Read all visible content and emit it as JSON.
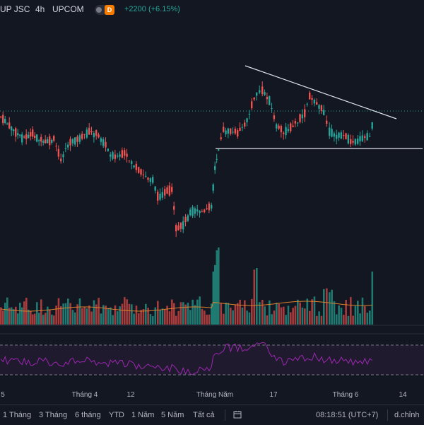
{
  "header": {
    "symbol": "UP JSC",
    "interval": "4h",
    "exchange": "UPCOM",
    "delayed_badge": "D",
    "change": "+2200 (+6.15%)",
    "change_color": "#26a69a"
  },
  "colors": {
    "up": "#26a69a",
    "down": "#ef5350",
    "volume_up": "#1f7a72",
    "volume_down": "#a83b3b",
    "rsi": "#9c27b0",
    "trendline": "#e0e3eb",
    "background": "#131722"
  },
  "time_axis": {
    "labels": [
      "5",
      "Tháng 4",
      "12",
      "Tháng Năm",
      "17",
      "Tháng 6",
      "14"
    ]
  },
  "bottom_bar": {
    "ranges": [
      "1 Tháng",
      "3 Tháng",
      "6 tháng",
      "YTD",
      "1 Năm",
      "5 Năm",
      "Tất cả"
    ],
    "calendar_icon": "calendar-range-icon",
    "time": "08:18:51 (UTC+7)",
    "adjust": "d.chỉnh"
  },
  "chart_data": {
    "type": "candlestick",
    "price_scale": "relative (no printed price axis)",
    "volume_pane": true,
    "rsi_pane": true,
    "rsi_bands": [
      70,
      30
    ],
    "annotations": [
      "descending trendline across highs",
      "horizontal support line",
      "dotted current-price line"
    ]
  }
}
